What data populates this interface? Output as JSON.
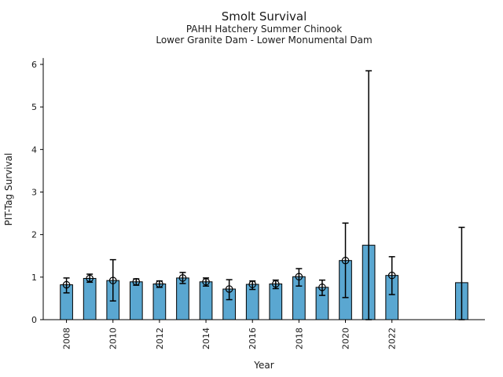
{
  "header": {
    "title": "Smolt Survival",
    "subtitle1": "PAHH Hatchery Summer Chinook",
    "subtitle2": "Lower Granite Dam - Lower Monumental Dam"
  },
  "colors": {
    "bar_fill": "#5aa7d1",
    "bar_edge": "#000000",
    "error_bar": "#000000",
    "text": "#1a1a1a"
  },
  "chart_data": {
    "type": "bar",
    "title": "Smolt Survival",
    "subtitle1": "PAHH Hatchery Summer Chinook",
    "subtitle2": "Lower Granite Dam - Lower Monumental Dam",
    "xlabel": "Year",
    "ylabel": "PIT-Tag Survival",
    "ylim": [
      0,
      6.15
    ],
    "yticks": [
      0,
      1,
      2,
      3,
      4,
      5,
      6
    ],
    "xlim": [
      2007,
      2026
    ],
    "xticks": [
      2008,
      2010,
      2012,
      2014,
      2016,
      2018,
      2020,
      2022
    ],
    "grid": false,
    "legend": null,
    "bar_width_years": 0.53,
    "series": [
      {
        "name": "PIT-Tag Survival",
        "x": [
          2008,
          2009,
          2010,
          2011,
          2012,
          2013,
          2014,
          2015,
          2016,
          2017,
          2018,
          2019,
          2020,
          2021,
          2022,
          2025
        ],
        "values": [
          0.82,
          0.97,
          0.92,
          0.89,
          0.84,
          0.98,
          0.89,
          0.72,
          0.83,
          0.84,
          1.01,
          0.76,
          1.39,
          1.75,
          1.04,
          0.87
        ],
        "err_lo": [
          0.63,
          0.88,
          0.44,
          0.81,
          0.76,
          0.85,
          0.79,
          0.47,
          0.71,
          0.73,
          0.79,
          0.57,
          0.52,
          0.0,
          0.59,
          0.0
        ],
        "err_hi": [
          0.98,
          1.07,
          1.41,
          0.96,
          0.91,
          1.11,
          0.98,
          0.94,
          0.91,
          0.93,
          1.2,
          0.93,
          2.27,
          5.85,
          1.48,
          2.17
        ],
        "marker": [
          true,
          true,
          true,
          true,
          true,
          true,
          true,
          true,
          true,
          true,
          true,
          true,
          true,
          false,
          true,
          false
        ]
      }
    ]
  }
}
